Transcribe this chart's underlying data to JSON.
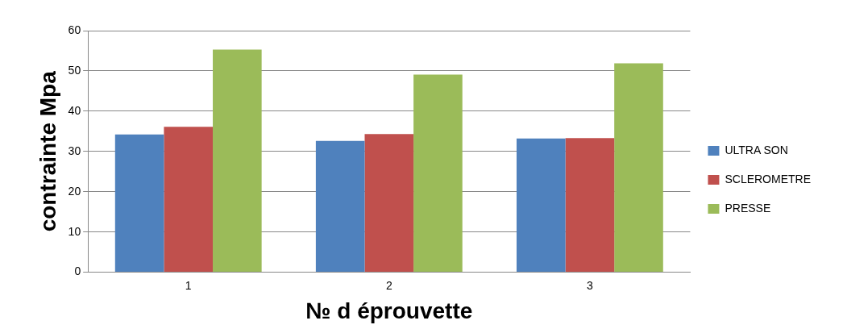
{
  "chart_data": {
    "type": "bar",
    "xlabel": "№ d éprouvette",
    "ylabel": "contrainte Mpa",
    "categories": [
      "1",
      "2",
      "3"
    ],
    "series": [
      {
        "name": "ULTRA SON",
        "color": "#4f81bd",
        "values": [
          34.2,
          32.6,
          33.2
        ]
      },
      {
        "name": "SCLEROMETRE",
        "color": "#c0504d",
        "values": [
          36.1,
          34.3,
          33.3
        ]
      },
      {
        "name": "PRESSE",
        "color": "#9bbb59",
        "values": [
          55.3,
          49.1,
          51.9
        ]
      }
    ],
    "ylim": [
      0,
      60
    ],
    "yticks": [
      0,
      10,
      20,
      30,
      40,
      50,
      60
    ],
    "grid": "y",
    "legend": "right"
  }
}
